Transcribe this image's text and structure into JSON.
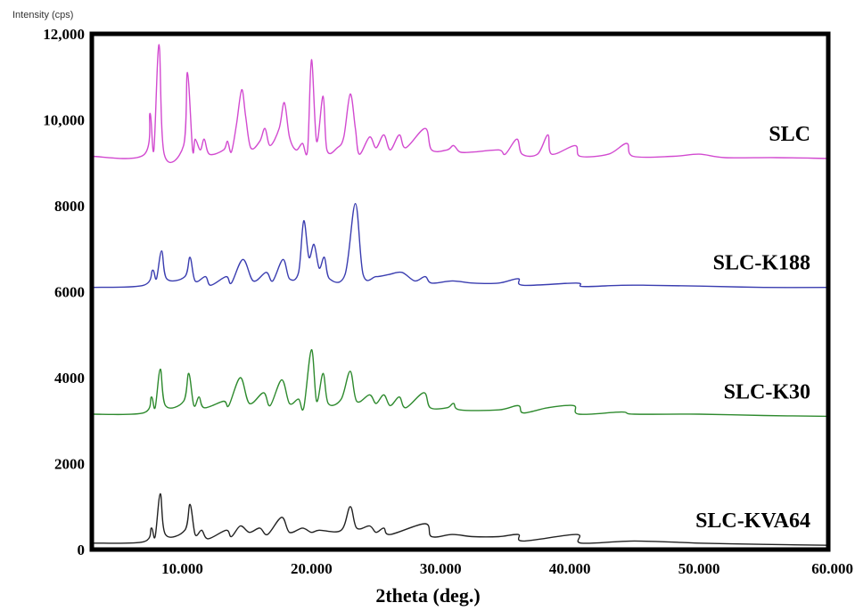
{
  "chart_data": {
    "type": "line",
    "title": "",
    "ylabel": "Intensity (cps)",
    "xlabel": "2theta (deg.)",
    "xlim": [
      3,
      60
    ],
    "ylim": [
      0,
      12000
    ],
    "yticks": [
      0,
      2000,
      4000,
      6000,
      8000,
      10000,
      12000
    ],
    "ytick_labels": [
      "0",
      "2000",
      "4000",
      "6000",
      "8000",
      "10,000",
      "12,000"
    ],
    "xticks": [
      10,
      20,
      30,
      40,
      50,
      60
    ],
    "xtick_labels": [
      "10.000",
      "20.000",
      "30.000",
      "40.000",
      "50.000",
      "60.000"
    ],
    "grid": false,
    "series": [
      {
        "name": "SLC",
        "color": "#d24ad0",
        "baseline": 9100,
        "points": [
          [
            3,
            9150
          ],
          [
            7,
            9180
          ],
          [
            7.5,
            10150
          ],
          [
            7.8,
            9300
          ],
          [
            8.2,
            11750
          ],
          [
            8.6,
            9200
          ],
          [
            10.1,
            9400
          ],
          [
            10.4,
            11100
          ],
          [
            10.8,
            9300
          ],
          [
            11.0,
            9550
          ],
          [
            11.4,
            9300
          ],
          [
            11.7,
            9550
          ],
          [
            12.1,
            9200
          ],
          [
            13.2,
            9300
          ],
          [
            13.5,
            9500
          ],
          [
            13.8,
            9250
          ],
          [
            14.2,
            9900
          ],
          [
            14.6,
            10700
          ],
          [
            14.9,
            10100
          ],
          [
            15.3,
            9350
          ],
          [
            16.0,
            9500
          ],
          [
            16.4,
            9800
          ],
          [
            16.8,
            9400
          ],
          [
            17.5,
            9800
          ],
          [
            17.9,
            10400
          ],
          [
            18.3,
            9600
          ],
          [
            18.8,
            9300
          ],
          [
            19.3,
            9450
          ],
          [
            19.7,
            9300
          ],
          [
            20.0,
            11400
          ],
          [
            20.4,
            9500
          ],
          [
            20.9,
            10550
          ],
          [
            21.2,
            9300
          ],
          [
            22.0,
            9350
          ],
          [
            22.5,
            9600
          ],
          [
            23.0,
            10600
          ],
          [
            23.4,
            9800
          ],
          [
            23.7,
            9200
          ],
          [
            24.5,
            9600
          ],
          [
            25.0,
            9350
          ],
          [
            25.6,
            9650
          ],
          [
            26.1,
            9300
          ],
          [
            26.8,
            9650
          ],
          [
            27.3,
            9350
          ],
          [
            28.8,
            9800
          ],
          [
            29.3,
            9300
          ],
          [
            30.5,
            9300
          ],
          [
            31.0,
            9400
          ],
          [
            31.5,
            9250
          ],
          [
            32.5,
            9250
          ],
          [
            34.5,
            9300
          ],
          [
            35.0,
            9200
          ],
          [
            35.9,
            9550
          ],
          [
            36.3,
            9200
          ],
          [
            37.5,
            9200
          ],
          [
            38.3,
            9650
          ],
          [
            38.6,
            9200
          ],
          [
            40.4,
            9400
          ],
          [
            40.8,
            9150
          ],
          [
            43.0,
            9200
          ],
          [
            44.4,
            9450
          ],
          [
            44.9,
            9150
          ],
          [
            48,
            9150
          ],
          [
            50,
            9200
          ],
          [
            52,
            9120
          ],
          [
            56,
            9120
          ],
          [
            60,
            9100
          ]
        ]
      },
      {
        "name": "SLC-K188",
        "color": "#3a3db0",
        "baseline": 6100,
        "points": [
          [
            3,
            6100
          ],
          [
            7,
            6150
          ],
          [
            7.7,
            6500
          ],
          [
            8.0,
            6300
          ],
          [
            8.4,
            6950
          ],
          [
            8.8,
            6300
          ],
          [
            10.2,
            6350
          ],
          [
            10.6,
            6800
          ],
          [
            11.0,
            6250
          ],
          [
            11.8,
            6350
          ],
          [
            12.2,
            6150
          ],
          [
            13.4,
            6350
          ],
          [
            13.8,
            6200
          ],
          [
            14.7,
            6750
          ],
          [
            15.5,
            6250
          ],
          [
            16.5,
            6450
          ],
          [
            17.0,
            6250
          ],
          [
            17.8,
            6750
          ],
          [
            18.3,
            6300
          ],
          [
            19.0,
            6450
          ],
          [
            19.4,
            7650
          ],
          [
            19.8,
            6800
          ],
          [
            20.2,
            7100
          ],
          [
            20.6,
            6550
          ],
          [
            21.0,
            6800
          ],
          [
            21.4,
            6300
          ],
          [
            22.6,
            6400
          ],
          [
            23.4,
            8050
          ],
          [
            24.0,
            6400
          ],
          [
            25.0,
            6350
          ],
          [
            26.0,
            6400
          ],
          [
            27.0,
            6450
          ],
          [
            28.0,
            6250
          ],
          [
            28.8,
            6350
          ],
          [
            29.3,
            6200
          ],
          [
            30.9,
            6250
          ],
          [
            32.5,
            6200
          ],
          [
            34.5,
            6200
          ],
          [
            36.0,
            6300
          ],
          [
            36.4,
            6150
          ],
          [
            40.5,
            6200
          ],
          [
            41.0,
            6120
          ],
          [
            44.0,
            6150
          ],
          [
            46.0,
            6150
          ],
          [
            50,
            6130
          ],
          [
            55,
            6100
          ],
          [
            60,
            6100
          ]
        ]
      },
      {
        "name": "SLC-K30",
        "color": "#2e8a2e",
        "baseline": 3100,
        "points": [
          [
            3,
            3150
          ],
          [
            7,
            3180
          ],
          [
            7.6,
            3550
          ],
          [
            7.9,
            3300
          ],
          [
            8.3,
            4200
          ],
          [
            8.7,
            3350
          ],
          [
            10.1,
            3450
          ],
          [
            10.5,
            4100
          ],
          [
            10.9,
            3350
          ],
          [
            11.3,
            3550
          ],
          [
            11.7,
            3300
          ],
          [
            13.2,
            3450
          ],
          [
            13.6,
            3350
          ],
          [
            14.5,
            4000
          ],
          [
            15.2,
            3400
          ],
          [
            16.3,
            3650
          ],
          [
            16.8,
            3350
          ],
          [
            17.7,
            3950
          ],
          [
            18.3,
            3400
          ],
          [
            19.0,
            3500
          ],
          [
            19.4,
            3300
          ],
          [
            20.0,
            4650
          ],
          [
            20.4,
            3450
          ],
          [
            20.9,
            4100
          ],
          [
            21.3,
            3400
          ],
          [
            22.3,
            3500
          ],
          [
            23.0,
            4150
          ],
          [
            23.5,
            3450
          ],
          [
            24.5,
            3600
          ],
          [
            25.0,
            3400
          ],
          [
            25.6,
            3600
          ],
          [
            26.1,
            3350
          ],
          [
            26.8,
            3550
          ],
          [
            27.3,
            3300
          ],
          [
            28.7,
            3650
          ],
          [
            29.2,
            3300
          ],
          [
            30.5,
            3300
          ],
          [
            31.0,
            3400
          ],
          [
            31.5,
            3250
          ],
          [
            34.5,
            3250
          ],
          [
            36.0,
            3350
          ],
          [
            36.4,
            3180
          ],
          [
            38.3,
            3300
          ],
          [
            40.3,
            3350
          ],
          [
            40.7,
            3150
          ],
          [
            44.0,
            3200
          ],
          [
            45.0,
            3150
          ],
          [
            50,
            3150
          ],
          [
            55,
            3120
          ],
          [
            60,
            3100
          ]
        ]
      },
      {
        "name": "SLC-KVA64",
        "color": "#222222",
        "baseline": 100,
        "points": [
          [
            3,
            150
          ],
          [
            7,
            180
          ],
          [
            7.6,
            500
          ],
          [
            7.9,
            300
          ],
          [
            8.3,
            1300
          ],
          [
            8.7,
            350
          ],
          [
            10.2,
            450
          ],
          [
            10.6,
            1050
          ],
          [
            11.0,
            350
          ],
          [
            11.5,
            450
          ],
          [
            12.0,
            250
          ],
          [
            13.4,
            450
          ],
          [
            13.8,
            300
          ],
          [
            14.5,
            550
          ],
          [
            15.2,
            400
          ],
          [
            16.0,
            500
          ],
          [
            16.6,
            350
          ],
          [
            17.7,
            750
          ],
          [
            18.3,
            400
          ],
          [
            19.3,
            500
          ],
          [
            20.0,
            400
          ],
          [
            20.6,
            450
          ],
          [
            22.3,
            450
          ],
          [
            23.0,
            1000
          ],
          [
            23.5,
            500
          ],
          [
            24.5,
            550
          ],
          [
            25.0,
            400
          ],
          [
            25.6,
            500
          ],
          [
            26.1,
            350
          ],
          [
            28.8,
            600
          ],
          [
            29.3,
            300
          ],
          [
            30.9,
            350
          ],
          [
            32.5,
            300
          ],
          [
            34.5,
            300
          ],
          [
            36.0,
            350
          ],
          [
            36.4,
            200
          ],
          [
            40.5,
            350
          ],
          [
            40.9,
            150
          ],
          [
            45.0,
            200
          ],
          [
            50,
            150
          ],
          [
            55,
            120
          ],
          [
            60,
            100
          ]
        ]
      }
    ]
  }
}
